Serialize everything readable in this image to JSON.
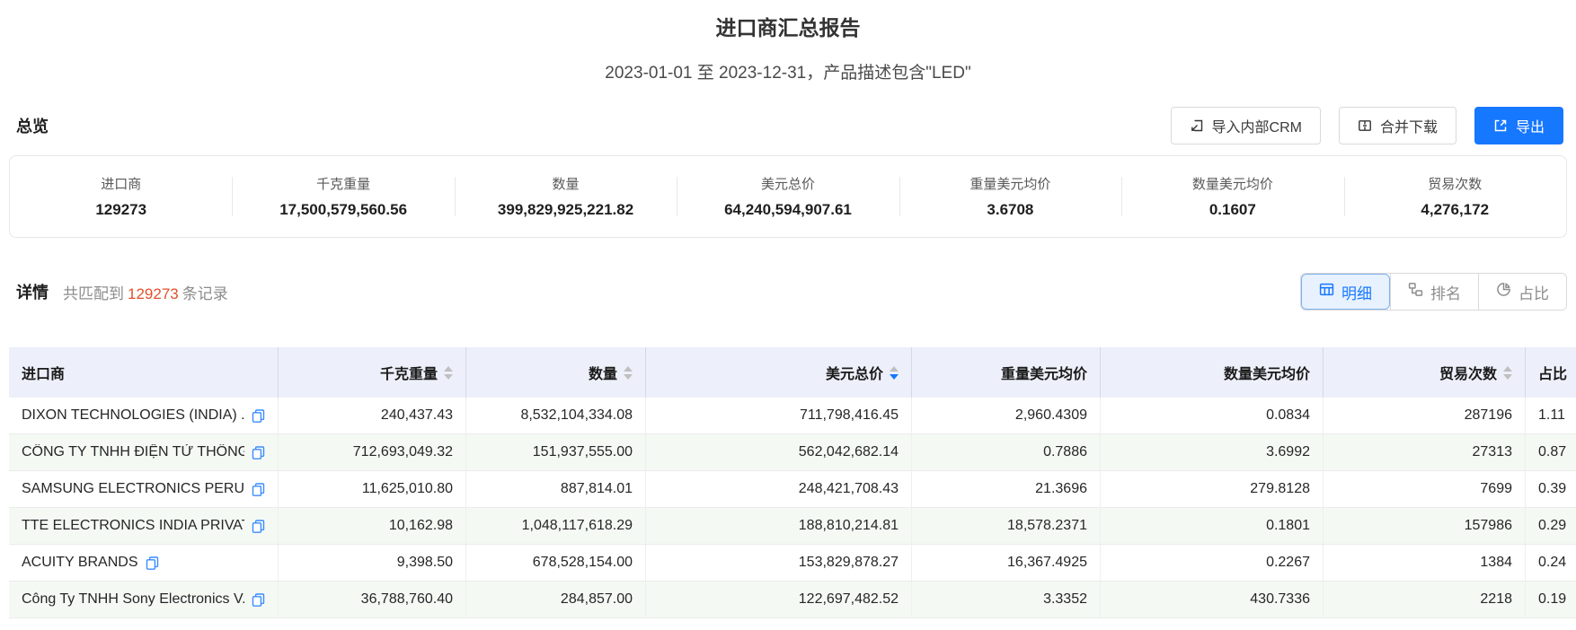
{
  "page": {
    "title": "进口商汇总报告",
    "subtitle": "2023-01-01 至 2023-12-31，产品描述包含\"LED\""
  },
  "overview": {
    "heading": "总览",
    "buttons": {
      "import_crm": "导入内部CRM",
      "merge_download": "合并下载",
      "export": "导出"
    },
    "stats": [
      {
        "label": "进口商",
        "value": "129273"
      },
      {
        "label": "千克重量",
        "value": "17,500,579,560.56"
      },
      {
        "label": "数量",
        "value": "399,829,925,221.82"
      },
      {
        "label": "美元总价",
        "value": "64,240,594,907.61"
      },
      {
        "label": "重量美元均价",
        "value": "3.6708"
      },
      {
        "label": "数量美元均价",
        "value": "0.1607"
      },
      {
        "label": "贸易次数",
        "value": "4,276,172"
      }
    ]
  },
  "details": {
    "heading": "详情",
    "match_prefix": "共匹配到",
    "match_count": "129273",
    "match_suffix": "条记录",
    "tabs": [
      {
        "label": "明细",
        "active": true
      },
      {
        "label": "排名",
        "active": false
      },
      {
        "label": "占比",
        "active": false
      }
    ]
  },
  "table": {
    "columns": [
      {
        "label": "进口商"
      },
      {
        "label": "千克重量",
        "sortable": true
      },
      {
        "label": "数量",
        "sortable": true
      },
      {
        "label": "美元总价",
        "sortable": true,
        "sorted": "desc"
      },
      {
        "label": "重量美元均价"
      },
      {
        "label": "数量美元均价"
      },
      {
        "label": "贸易次数",
        "sortable": true
      },
      {
        "label": "占比"
      }
    ],
    "rows": [
      {
        "importer": "DIXON TECHNOLOGIES (INDIA) ...",
        "values": [
          "240,437.43",
          "8,532,104,334.08",
          "711,798,416.45",
          "2,960.4309",
          "0.0834",
          "287196",
          "1.11"
        ]
      },
      {
        "importer": "CÔNG TY TNHH ĐIỆN TỬ THÔNG...",
        "values": [
          "712,693,049.32",
          "151,937,555.00",
          "562,042,682.14",
          "0.7886",
          "3.6992",
          "27313",
          "0.87"
        ]
      },
      {
        "importer": "SAMSUNG ELECTRONICS PERU S...",
        "values": [
          "11,625,010.80",
          "887,814.01",
          "248,421,708.43",
          "21.3696",
          "279.8128",
          "7699",
          "0.39"
        ]
      },
      {
        "importer": "TTE ELECTRONICS INDIA PRIVAT...",
        "values": [
          "10,162.98",
          "1,048,117,618.29",
          "188,810,214.81",
          "18,578.2371",
          "0.1801",
          "157986",
          "0.29"
        ]
      },
      {
        "importer": "ACUITY BRANDS",
        "values": [
          "9,398.50",
          "678,528,154.00",
          "153,829,878.27",
          "16,367.4925",
          "0.2267",
          "1384",
          "0.24"
        ]
      },
      {
        "importer": "Công Ty TNHH Sony Electronics V...",
        "values": [
          "36,788,760.40",
          "284,857.00",
          "122,697,482.52",
          "3.3352",
          "430.7336",
          "2218",
          "0.19"
        ]
      }
    ]
  },
  "colors": {
    "accent_blue": "#1677ff",
    "count_orange": "#e0512b",
    "table_header_bg": "#edf0fa",
    "row_stripe": "#f4f9f4"
  }
}
